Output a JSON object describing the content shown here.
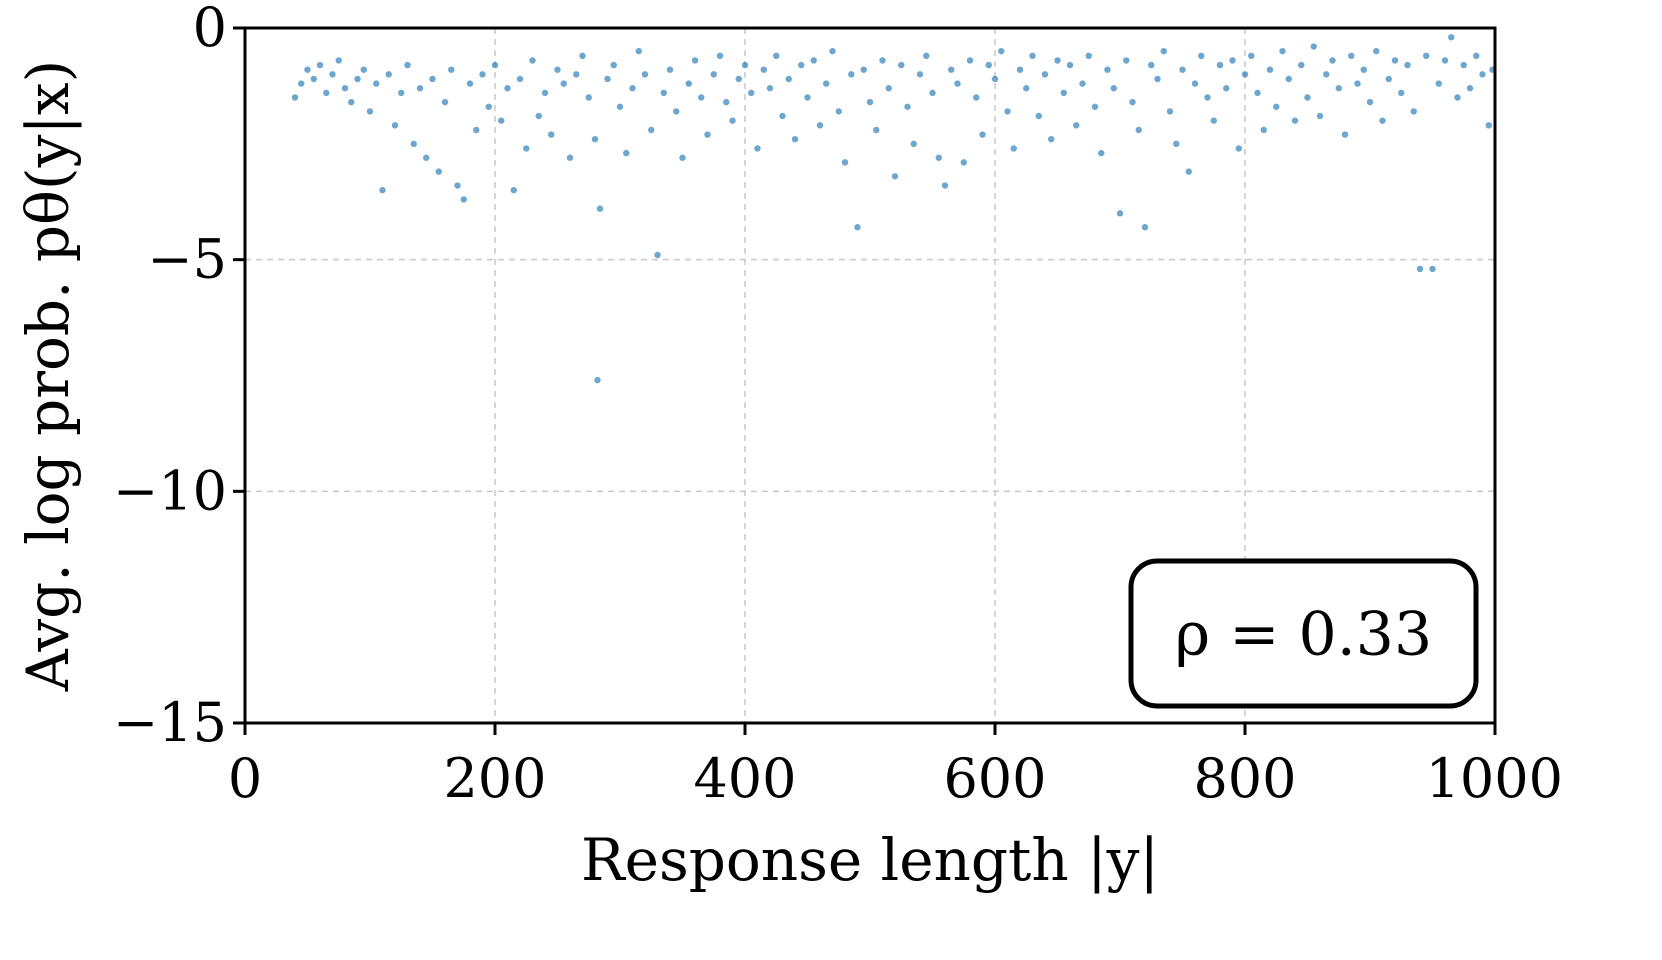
{
  "chart_data": {
    "type": "scatter",
    "title": "",
    "xlabel": "Response length |y|",
    "ylabel": "Avg. log prob. pθ(y|x)",
    "xlim": [
      0,
      1000
    ],
    "ylim": [
      -15,
      0
    ],
    "xticks": [
      0,
      200,
      400,
      600,
      800,
      1000
    ],
    "yticks": [
      0,
      -5,
      -10,
      -15
    ],
    "xtick_labels": [
      "0",
      "200",
      "400",
      "600",
      "800",
      "1000"
    ],
    "ytick_labels": [
      "0",
      "−5",
      "−10",
      "−15"
    ],
    "grid": true,
    "annotation": "ρ = 0.33",
    "annotation_position": "bottom-right",
    "point_color": "#1f77b4",
    "series": [
      {
        "points": [
          [
            40,
            -1.5
          ],
          [
            45,
            -1.2
          ],
          [
            50,
            -0.9
          ],
          [
            55,
            -1.1
          ],
          [
            60,
            -0.8
          ],
          [
            65,
            -1.4
          ],
          [
            70,
            -1.0
          ],
          [
            75,
            -0.7
          ],
          [
            80,
            -1.3
          ],
          [
            85,
            -1.6
          ],
          [
            90,
            -1.1
          ],
          [
            95,
            -0.9
          ],
          [
            100,
            -1.8
          ],
          [
            105,
            -1.2
          ],
          [
            110,
            -3.5
          ],
          [
            115,
            -1.0
          ],
          [
            120,
            -2.1
          ],
          [
            125,
            -1.4
          ],
          [
            130,
            -0.8
          ],
          [
            135,
            -2.5
          ],
          [
            140,
            -1.3
          ],
          [
            145,
            -2.8
          ],
          [
            150,
            -1.1
          ],
          [
            155,
            -3.1
          ],
          [
            160,
            -1.6
          ],
          [
            165,
            -0.9
          ],
          [
            170,
            -3.4
          ],
          [
            175,
            -3.7
          ],
          [
            180,
            -1.2
          ],
          [
            185,
            -2.2
          ],
          [
            190,
            -1.0
          ],
          [
            195,
            -1.7
          ],
          [
            200,
            -0.8
          ],
          [
            205,
            -2.0
          ],
          [
            210,
            -1.3
          ],
          [
            215,
            -3.5
          ],
          [
            220,
            -1.1
          ],
          [
            225,
            -2.6
          ],
          [
            230,
            -0.7
          ],
          [
            235,
            -1.9
          ],
          [
            240,
            -1.4
          ],
          [
            245,
            -2.3
          ],
          [
            250,
            -0.9
          ],
          [
            255,
            -1.2
          ],
          [
            260,
            -2.8
          ],
          [
            265,
            -1.0
          ],
          [
            270,
            -0.6
          ],
          [
            275,
            -1.5
          ],
          [
            280,
            -2.4
          ],
          [
            282,
            -7.6
          ],
          [
            284,
            -3.9
          ],
          [
            290,
            -1.1
          ],
          [
            295,
            -0.8
          ],
          [
            300,
            -1.7
          ],
          [
            305,
            -2.7
          ],
          [
            310,
            -1.3
          ],
          [
            315,
            -0.5
          ],
          [
            320,
            -1.0
          ],
          [
            325,
            -2.2
          ],
          [
            330,
            -4.9
          ],
          [
            335,
            -1.4
          ],
          [
            340,
            -0.9
          ],
          [
            345,
            -1.8
          ],
          [
            350,
            -2.8
          ],
          [
            355,
            -1.2
          ],
          [
            360,
            -0.7
          ],
          [
            365,
            -1.5
          ],
          [
            370,
            -2.3
          ],
          [
            375,
            -1.0
          ],
          [
            380,
            -0.6
          ],
          [
            385,
            -1.6
          ],
          [
            390,
            -2.0
          ],
          [
            395,
            -1.1
          ],
          [
            400,
            -0.8
          ],
          [
            405,
            -1.4
          ],
          [
            410,
            -2.6
          ],
          [
            415,
            -0.9
          ],
          [
            420,
            -1.3
          ],
          [
            425,
            -0.6
          ],
          [
            430,
            -1.9
          ],
          [
            435,
            -1.1
          ],
          [
            440,
            -2.4
          ],
          [
            445,
            -0.8
          ],
          [
            450,
            -1.5
          ],
          [
            455,
            -0.7
          ],
          [
            460,
            -2.1
          ],
          [
            465,
            -1.2
          ],
          [
            470,
            -0.5
          ],
          [
            475,
            -1.8
          ],
          [
            480,
            -2.9
          ],
          [
            485,
            -1.0
          ],
          [
            490,
            -4.3
          ],
          [
            495,
            -0.9
          ],
          [
            500,
            -1.6
          ],
          [
            505,
            -2.2
          ],
          [
            510,
            -0.7
          ],
          [
            515,
            -1.3
          ],
          [
            520,
            -3.2
          ],
          [
            525,
            -0.8
          ],
          [
            530,
            -1.7
          ],
          [
            535,
            -2.5
          ],
          [
            540,
            -1.0
          ],
          [
            545,
            -0.6
          ],
          [
            550,
            -1.4
          ],
          [
            555,
            -2.8
          ],
          [
            560,
            -3.4
          ],
          [
            565,
            -0.9
          ],
          [
            570,
            -1.2
          ],
          [
            575,
            -2.9
          ],
          [
            580,
            -0.7
          ],
          [
            585,
            -1.5
          ],
          [
            590,
            -2.3
          ],
          [
            595,
            -0.8
          ],
          [
            600,
            -1.1
          ],
          [
            605,
            -0.5
          ],
          [
            610,
            -1.8
          ],
          [
            615,
            -2.6
          ],
          [
            620,
            -0.9
          ],
          [
            625,
            -1.3
          ],
          [
            630,
            -0.6
          ],
          [
            635,
            -1.9
          ],
          [
            640,
            -1.0
          ],
          [
            645,
            -2.4
          ],
          [
            650,
            -0.7
          ],
          [
            655,
            -1.4
          ],
          [
            660,
            -0.8
          ],
          [
            665,
            -2.1
          ],
          [
            670,
            -1.2
          ],
          [
            675,
            -0.6
          ],
          [
            680,
            -1.7
          ],
          [
            685,
            -2.7
          ],
          [
            690,
            -0.9
          ],
          [
            695,
            -1.3
          ],
          [
            700,
            -4.0
          ],
          [
            705,
            -0.7
          ],
          [
            710,
            -1.6
          ],
          [
            715,
            -2.2
          ],
          [
            720,
            -4.3
          ],
          [
            725,
            -0.8
          ],
          [
            730,
            -1.1
          ],
          [
            735,
            -0.5
          ],
          [
            740,
            -1.8
          ],
          [
            745,
            -2.5
          ],
          [
            750,
            -0.9
          ],
          [
            755,
            -3.1
          ],
          [
            760,
            -1.2
          ],
          [
            765,
            -0.6
          ],
          [
            770,
            -1.5
          ],
          [
            775,
            -2.0
          ],
          [
            780,
            -0.8
          ],
          [
            785,
            -1.3
          ],
          [
            790,
            -0.7
          ],
          [
            795,
            -2.6
          ],
          [
            800,
            -1.0
          ],
          [
            805,
            -0.6
          ],
          [
            810,
            -1.4
          ],
          [
            815,
            -2.2
          ],
          [
            820,
            -0.9
          ],
          [
            825,
            -1.7
          ],
          [
            830,
            -0.5
          ],
          [
            835,
            -1.1
          ],
          [
            840,
            -2.0
          ],
          [
            845,
            -0.8
          ],
          [
            850,
            -1.5
          ],
          [
            855,
            -0.4
          ],
          [
            860,
            -1.9
          ],
          [
            865,
            -1.0
          ],
          [
            870,
            -0.7
          ],
          [
            875,
            -1.3
          ],
          [
            880,
            -2.3
          ],
          [
            885,
            -0.6
          ],
          [
            890,
            -1.2
          ],
          [
            895,
            -0.9
          ],
          [
            900,
            -1.6
          ],
          [
            905,
            -0.5
          ],
          [
            910,
            -2.0
          ],
          [
            915,
            -1.1
          ],
          [
            920,
            -0.7
          ],
          [
            925,
            -1.4
          ],
          [
            930,
            -0.8
          ],
          [
            935,
            -1.8
          ],
          [
            940,
            -5.2
          ],
          [
            945,
            -0.6
          ],
          [
            950,
            -5.2
          ],
          [
            955,
            -1.2
          ],
          [
            960,
            -0.7
          ],
          [
            965,
            -0.2
          ],
          [
            970,
            -1.5
          ],
          [
            975,
            -0.8
          ],
          [
            980,
            -1.3
          ],
          [
            985,
            -0.6
          ],
          [
            990,
            -1.0
          ],
          [
            995,
            -2.1
          ],
          [
            998,
            -0.9
          ]
        ]
      }
    ]
  }
}
